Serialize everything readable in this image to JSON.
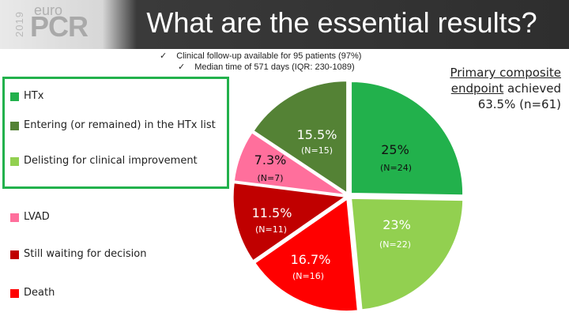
{
  "header": {
    "year": "2019",
    "brand_top": "euro",
    "brand_main": "PCR",
    "title": "What are the essential results?"
  },
  "bullets": [
    {
      "icon": "check-icon",
      "tick": "✓",
      "text": "Clinical follow-up available for 95 patients (97%)"
    },
    {
      "icon": "check-icon",
      "tick": "✓",
      "text": "Median time of 571 days (IQR: 230-1089)"
    }
  ],
  "primary_endpoint": {
    "line1": "Primary composite",
    "line2_underlined": "endpoint",
    "line2_rest": " achieved",
    "line3": "63.5% (n=61)"
  },
  "chart_data": {
    "type": "pie",
    "title": "",
    "legend_placement": "left",
    "slices": [
      {
        "legend": "HTx",
        "label": "25%",
        "n_label": "(N=24)",
        "value": 25,
        "color": "#22b14c"
      },
      {
        "legend": "Delisting for clinical improvement",
        "label": "23%",
        "n_label": "(N=22)",
        "value": 23,
        "color": "#92d050"
      },
      {
        "legend": "Death",
        "label": "16.7%",
        "n_label": "(N=16)",
        "value": 16.7,
        "color": "#ff0000"
      },
      {
        "legend": "Still waiting for decision",
        "label": "11.5%",
        "n_label": "(N=11)",
        "value": 11.5,
        "color": "#c00000"
      },
      {
        "legend": "LVAD",
        "label": "7.3%",
        "n_label": "(N=7)",
        "value": 7.3,
        "color": "#ff6f9c"
      },
      {
        "legend": "Entering (or remained) in the HTx list",
        "label": "15.5%",
        "n_label": "(N=15)",
        "value": 15.5,
        "color": "#548235"
      }
    ],
    "legend_order": [
      "HTx",
      "Entering (or remained) in the HTx list",
      "Delisting for clinical improvement",
      "LVAD",
      "Still waiting for decision",
      "Death"
    ]
  }
}
